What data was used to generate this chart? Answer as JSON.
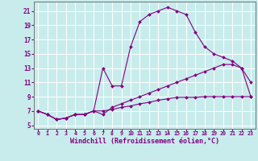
{
  "background_color": "#c8ecec",
  "grid_color": "#ffffff",
  "line_color": "#800080",
  "xlabel": "Windchill (Refroidissement éolien,°C)",
  "xlabel_fontsize": 6.0,
  "xtick_fontsize": 4.8,
  "ytick_fontsize": 5.5,
  "yticks": [
    5,
    7,
    9,
    11,
    13,
    15,
    17,
    19,
    21
  ],
  "xticks": [
    0,
    1,
    2,
    3,
    4,
    5,
    6,
    7,
    8,
    9,
    10,
    11,
    12,
    13,
    14,
    15,
    16,
    17,
    18,
    19,
    20,
    21,
    22,
    23
  ],
  "xlim": [
    -0.5,
    23.5
  ],
  "ylim": [
    4.5,
    22.3
  ],
  "series1_x": [
    0,
    1,
    2,
    3,
    4,
    5,
    6,
    7,
    8,
    9,
    10,
    11,
    12,
    13,
    14,
    15,
    16,
    17,
    18,
    19,
    20,
    21,
    22,
    23
  ],
  "series1_y": [
    7.0,
    6.5,
    5.8,
    6.0,
    6.5,
    6.5,
    7.0,
    7.0,
    7.2,
    7.5,
    7.7,
    8.0,
    8.2,
    8.5,
    8.7,
    8.9,
    8.9,
    8.9,
    9.0,
    9.0,
    9.0,
    9.0,
    9.0,
    9.0
  ],
  "series2_x": [
    0,
    1,
    2,
    3,
    4,
    5,
    6,
    7,
    8,
    9,
    10,
    11,
    12,
    13,
    14,
    15,
    16,
    17,
    18,
    19,
    20,
    21,
    22,
    23
  ],
  "series2_y": [
    7.0,
    6.5,
    5.8,
    6.0,
    6.5,
    6.5,
    7.0,
    6.5,
    7.5,
    8.0,
    8.5,
    9.0,
    9.5,
    10.0,
    10.5,
    11.0,
    11.5,
    12.0,
    12.5,
    13.0,
    13.5,
    13.5,
    13.0,
    11.0
  ],
  "series3_x": [
    0,
    1,
    2,
    3,
    4,
    5,
    6,
    7,
    8,
    9,
    10,
    11,
    12,
    13,
    14,
    15,
    16,
    17,
    18,
    19,
    20,
    21,
    22,
    23
  ],
  "series3_y": [
    7.0,
    6.5,
    5.8,
    6.0,
    6.5,
    6.5,
    7.0,
    13.0,
    10.5,
    10.5,
    16.0,
    19.5,
    20.5,
    21.0,
    21.5,
    21.0,
    20.5,
    18.0,
    16.0,
    15.0,
    14.5,
    14.0,
    13.0,
    9.0
  ]
}
